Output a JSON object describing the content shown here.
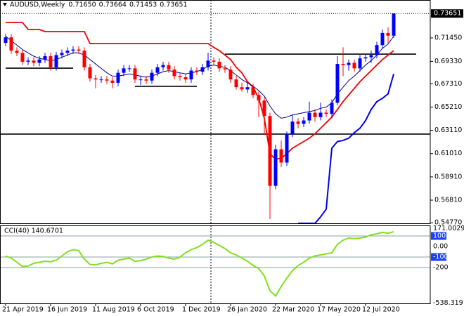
{
  "chart_data": [
    {
      "type": "candlestick",
      "title": "AUDUSD,Weekly",
      "header_values": [
        "0.71650",
        "0.73664",
        "0.71453",
        "0.73651"
      ],
      "categories": [
        "21 Apr 2019",
        null,
        null,
        null,
        null,
        null,
        null,
        null,
        "16 Jun 2019",
        null,
        null,
        null,
        null,
        null,
        null,
        null,
        "11 Aug 2019",
        null,
        null,
        null,
        null,
        null,
        null,
        null,
        "6 Oct 2019",
        null,
        null,
        null,
        null,
        null,
        null,
        null,
        "1 Dec 2019",
        null,
        null,
        null,
        null,
        null,
        null,
        null,
        "26 Jan 2020",
        null,
        null,
        null,
        null,
        null,
        null,
        null,
        "22 Mar 2020",
        null,
        null,
        null,
        null,
        null,
        null,
        null,
        "17 May 2020",
        null,
        null,
        null,
        null,
        null,
        null,
        null,
        "12 Jul 2020",
        null,
        null,
        null,
        null,
        null
      ],
      "open": [
        0.71,
        0.715,
        0.703,
        0.701,
        0.693,
        0.694,
        0.692,
        0.695,
        0.698,
        0.688,
        0.699,
        0.701,
        0.703,
        0.704,
        0.703,
        0.688,
        0.678,
        0.677,
        0.677,
        0.676,
        0.674,
        0.683,
        0.687,
        0.687,
        0.677,
        0.677,
        0.676,
        0.683,
        0.688,
        0.69,
        0.686,
        0.68,
        0.679,
        0.677,
        0.685,
        0.684,
        0.688,
        0.694,
        0.693,
        0.687,
        0.686,
        0.677,
        0.67,
        0.668,
        0.67,
        0.663,
        0.658,
        0.644,
        0.581,
        0.614,
        0.602,
        0.628,
        0.639,
        0.637,
        0.64,
        0.647,
        0.643,
        0.647,
        0.646,
        0.656,
        0.691,
        0.69,
        0.692,
        0.687,
        0.696,
        0.697,
        0.699,
        0.708,
        0.719,
        0.7165
      ],
      "high": [
        0.718,
        0.718,
        0.706,
        0.704,
        0.697,
        0.697,
        0.698,
        0.701,
        0.701,
        0.702,
        0.704,
        0.706,
        0.707,
        0.707,
        0.706,
        0.691,
        0.681,
        0.68,
        0.68,
        0.679,
        0.686,
        0.69,
        0.69,
        0.69,
        0.68,
        0.68,
        0.686,
        0.691,
        0.693,
        0.693,
        0.689,
        0.683,
        0.682,
        0.688,
        0.688,
        0.691,
        0.701,
        0.697,
        0.696,
        0.69,
        0.689,
        0.68,
        0.674,
        0.674,
        0.673,
        0.666,
        0.661,
        0.647,
        0.618,
        0.622,
        0.63,
        0.645,
        0.642,
        0.643,
        0.657,
        0.65,
        0.656,
        0.65,
        0.659,
        0.698,
        0.706,
        0.695,
        0.695,
        0.699,
        0.7,
        0.703,
        0.711,
        0.722,
        0.724,
        0.73664
      ],
      "low": [
        0.707,
        0.7,
        0.698,
        0.69,
        0.69,
        0.689,
        0.689,
        0.692,
        0.685,
        0.685,
        0.696,
        0.698,
        0.7,
        0.7,
        0.685,
        0.675,
        0.669,
        0.674,
        0.673,
        0.669,
        0.671,
        0.68,
        0.684,
        0.674,
        0.672,
        0.673,
        0.673,
        0.68,
        0.685,
        0.683,
        0.677,
        0.676,
        0.674,
        0.674,
        0.681,
        0.681,
        0.685,
        0.69,
        0.684,
        0.683,
        0.674,
        0.668,
        0.666,
        0.665,
        0.66,
        0.643,
        0.627,
        0.551,
        0.578,
        0.598,
        0.599,
        0.625,
        0.633,
        0.634,
        0.637,
        0.639,
        0.64,
        0.643,
        0.642,
        0.654,
        0.68,
        0.685,
        0.684,
        0.684,
        0.693,
        0.692,
        0.696,
        0.705,
        0.71,
        0.71453
      ],
      "close": [
        0.715,
        0.703,
        0.701,
        0.693,
        0.694,
        0.692,
        0.695,
        0.698,
        0.688,
        0.699,
        0.701,
        0.703,
        0.704,
        0.703,
        0.688,
        0.678,
        0.677,
        0.677,
        0.676,
        0.674,
        0.683,
        0.687,
        0.687,
        0.677,
        0.677,
        0.676,
        0.683,
        0.688,
        0.69,
        0.686,
        0.68,
        0.679,
        0.677,
        0.685,
        0.684,
        0.688,
        0.694,
        0.693,
        0.687,
        0.686,
        0.677,
        0.67,
        0.668,
        0.67,
        0.663,
        0.658,
        0.644,
        0.581,
        0.614,
        0.602,
        0.628,
        0.639,
        0.637,
        0.64,
        0.647,
        0.643,
        0.647,
        0.646,
        0.656,
        0.691,
        0.69,
        0.692,
        0.687,
        0.696,
        0.697,
        0.699,
        0.708,
        0.719,
        0.7165,
        0.73651
      ],
      "up_color": "#0000ff",
      "down_color": "#ff0000",
      "series": [
        {
          "color": "#ee0000",
          "width": 1.8,
          "values": [
            0.7284,
            0.7284,
            0.7284,
            0.7284,
            0.7221,
            0.7221,
            0.7221,
            0.7202,
            0.7202,
            0.7202,
            0.7202,
            0.7202,
            0.7202,
            0.7202,
            0.7202,
            0.7094,
            0.7094,
            0.7094,
            0.7094,
            0.7094,
            0.7094,
            0.7094,
            0.7094,
            0.7094,
            0.7094,
            0.7094,
            0.7094,
            0.7094,
            0.7094,
            0.7094,
            0.7094,
            0.7094,
            0.7094,
            0.7094,
            0.7094,
            0.7094,
            0.7094,
            0.706,
            0.703,
            0.699,
            0.695,
            0.688,
            0.683,
            0.675,
            0.67,
            0.66,
            0.642,
            0.61,
            0.605,
            0.606,
            0.61,
            0.615,
            0.618,
            0.621,
            0.624,
            0.628,
            0.633,
            0.638,
            0.643,
            0.65,
            0.657,
            0.663,
            0.669,
            0.675,
            0.68,
            0.685,
            0.69,
            0.695,
            0.699,
            0.703
          ]
        },
        {
          "color": "#000080",
          "width": 1,
          "values": [
            0.716,
            0.712,
            0.708,
            0.704,
            0.701,
            0.698,
            0.696,
            0.695,
            0.694,
            0.695,
            0.697,
            0.699,
            0.701,
            0.701,
            0.699,
            0.695,
            0.691,
            0.687,
            0.683,
            0.68,
            0.68,
            0.681,
            0.682,
            0.681,
            0.68,
            0.679,
            0.68,
            0.682,
            0.684,
            0.685,
            0.684,
            0.683,
            0.682,
            0.683,
            0.684,
            0.686,
            0.689,
            0.69,
            0.689,
            0.688,
            0.685,
            0.681,
            0.677,
            0.674,
            0.671,
            0.667,
            0.662,
            0.653,
            0.646,
            0.642,
            0.643,
            0.645,
            0.646,
            0.647,
            0.648,
            0.649,
            0.651,
            0.652,
            0.656,
            0.664,
            0.67,
            0.676,
            0.68,
            0.685,
            0.69,
            0.694,
            0.699,
            0.705,
            0.709,
            0.716
          ]
        },
        {
          "color": "#0000ee",
          "width": 2,
          "values": [
            null,
            null,
            null,
            null,
            null,
            null,
            null,
            null,
            null,
            null,
            null,
            null,
            null,
            null,
            null,
            null,
            null,
            null,
            null,
            null,
            null,
            null,
            null,
            null,
            null,
            null,
            null,
            null,
            null,
            null,
            null,
            null,
            null,
            null,
            null,
            null,
            null,
            null,
            null,
            null,
            null,
            null,
            null,
            null,
            null,
            null,
            null,
            null,
            null,
            null,
            null,
            null,
            0.5472,
            0.5472,
            0.5472,
            0.5472,
            0.553,
            0.56,
            0.615,
            0.621,
            0.622,
            0.624,
            0.629,
            0.633,
            0.64,
            0.65,
            0.657,
            0.66,
            0.664,
            0.682
          ]
        }
      ],
      "levels": [
        {
          "value": 0.6872,
          "start": 0,
          "end": 12
        },
        {
          "value": 0.6708,
          "start": 23,
          "end": 34
        },
        {
          "value": 0.6999,
          "start": 39,
          "end": 73
        },
        {
          "value": 0.6277,
          "start": -1,
          "end": 76
        }
      ],
      "current_price": 0.73651,
      "ylim": [
        0.5472,
        0.7487
      ],
      "yticks": [
        {
          "value": 0.7145,
          "label": "0.71450"
        },
        {
          "value": 0.6933,
          "label": "0.69330"
        },
        {
          "value": 0.6731,
          "label": "0.67310"
        },
        {
          "value": 0.6521,
          "label": "0.65210"
        },
        {
          "value": 0.6311,
          "label": "0.63110"
        },
        {
          "value": 0.6101,
          "label": "0.61010"
        },
        {
          "value": 0.5891,
          "label": "0.58910"
        },
        {
          "value": 0.5681,
          "label": "0.56810"
        },
        {
          "value": 0.5477,
          "label": "0.54770"
        }
      ]
    },
    {
      "type": "line",
      "title": "CCI(40) 140.6701",
      "color": "#80e01c",
      "values": [
        -90,
        -110,
        -150,
        -190,
        -185,
        -160,
        -150,
        -140,
        -145,
        -130,
        -90,
        -50,
        -30,
        -40,
        -120,
        -170,
        -175,
        -160,
        -150,
        -165,
        -130,
        -120,
        -110,
        -140,
        -135,
        -120,
        -100,
        -90,
        -95,
        -110,
        -120,
        -100,
        -60,
        -30,
        -10,
        20,
        60,
        40,
        10,
        -20,
        -60,
        -80,
        -110,
        -140,
        -180,
        -210,
        -280,
        -420,
        -470,
        -380,
        -300,
        -230,
        -180,
        -150,
        -110,
        -90,
        -80,
        -70,
        -60,
        20,
        60,
        80,
        75,
        80,
        90,
        110,
        120,
        135,
        125,
        140.6701
      ],
      "levels": [
        100,
        -100,
        -200
      ],
      "boxed_ticks": [
        1,
        3
      ],
      "ylim": [
        -540,
        200
      ],
      "yticks": [
        171.0029,
        100,
        {
          "value": 0,
          "label": "0.00"
        },
        -100,
        -200,
        -538.319
      ]
    }
  ]
}
